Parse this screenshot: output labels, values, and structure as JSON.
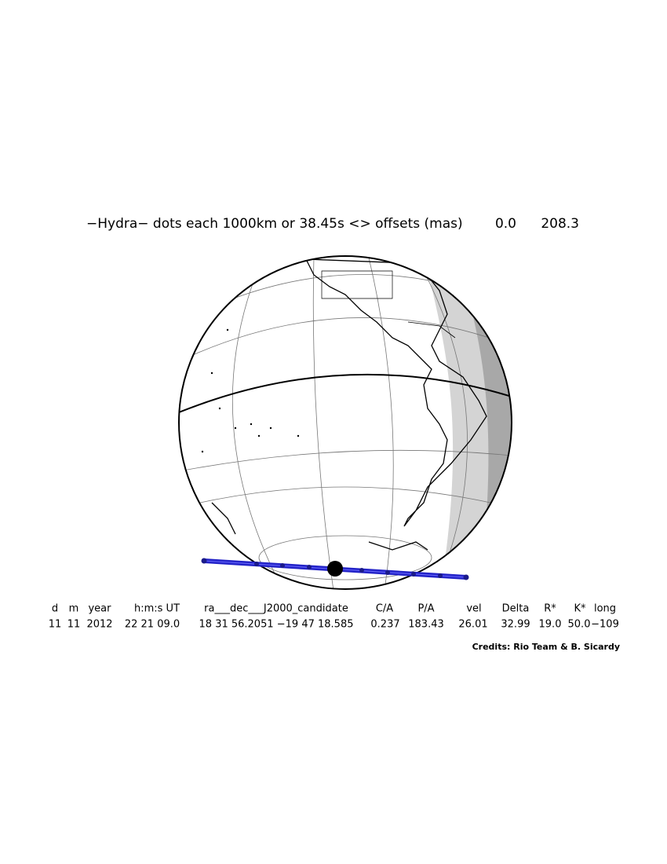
{
  "header": {
    "title": "−Hydra− dots each 1000km or 38.45s <> offsets (mas)",
    "offset_x": "0.0",
    "offset_y": "208.3"
  },
  "table": {
    "headers": [
      "d",
      "m",
      "year",
      "h:m:s UT",
      "ra___dec___J2000_candidate",
      "C/A",
      "P/A",
      "vel",
      "Delta",
      "R*",
      "K*",
      "long"
    ],
    "rows": [
      [
        "11",
        "11",
        "2012",
        "22 21 09.0",
        "18 31 56.2051  −19 47 18.585",
        "0.237",
        "183.43",
        "26.01",
        "32.99",
        "19.0",
        "50.0",
        "−109"
      ]
    ]
  },
  "credits": "Credits: Rio Team & B. Sicardy"
}
